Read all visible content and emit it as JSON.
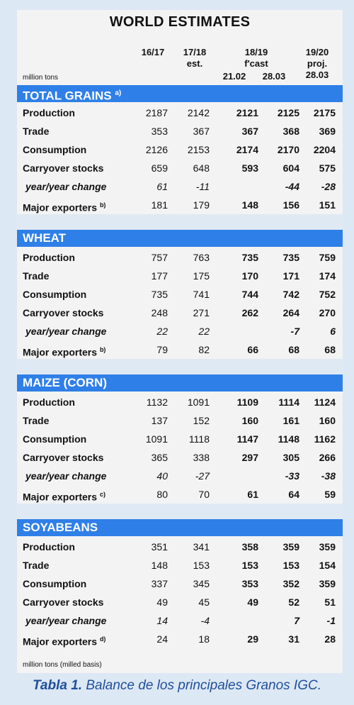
{
  "title": "WORLD ESTIMATES",
  "columns": {
    "c1": {
      "line1": "16/17",
      "line2": ""
    },
    "c2": {
      "line1": "17/18",
      "line2": "est."
    },
    "fcast": {
      "line1": "18/19",
      "line2": "f'cast"
    },
    "c3": {
      "line3": "21.02"
    },
    "c4": {
      "line3": "28.03"
    },
    "c5": {
      "line1": "19/20",
      "line2": "proj.",
      "line3": "28.03"
    }
  },
  "unit_label": "million tons",
  "colors": {
    "section_bar": "#2f7fe8",
    "section_bar_light": "#a9cff4"
  },
  "sections": [
    {
      "name": "TOTAL GRAINS",
      "note": "a)",
      "rows": [
        {
          "label": "Production",
          "note": "",
          "italic": false,
          "values": [
            "2187",
            "2142",
            "2121",
            "2125",
            "2175"
          ]
        },
        {
          "label": "Trade",
          "note": "",
          "italic": false,
          "values": [
            "353",
            "367",
            "367",
            "368",
            "369"
          ]
        },
        {
          "label": "Consumption",
          "note": "",
          "italic": false,
          "values": [
            "2126",
            "2153",
            "2174",
            "2170",
            "2204"
          ]
        },
        {
          "label": "Carryover stocks",
          "note": "",
          "italic": false,
          "values": [
            "659",
            "648",
            "593",
            "604",
            "575"
          ]
        },
        {
          "label": "year/year change",
          "note": "",
          "italic": true,
          "values": [
            "61",
            "-11",
            "",
            "-44",
            "-28"
          ]
        },
        {
          "label": "Major exporters",
          "note": "b)",
          "italic": false,
          "values": [
            "181",
            "179",
            "148",
            "156",
            "151"
          ]
        }
      ]
    },
    {
      "name": "WHEAT",
      "note": "",
      "rows": [
        {
          "label": "Production",
          "note": "",
          "italic": false,
          "values": [
            "757",
            "763",
            "735",
            "735",
            "759"
          ]
        },
        {
          "label": "Trade",
          "note": "",
          "italic": false,
          "values": [
            "177",
            "175",
            "170",
            "171",
            "174"
          ]
        },
        {
          "label": "Consumption",
          "note": "",
          "italic": false,
          "values": [
            "735",
            "741",
            "744",
            "742",
            "752"
          ]
        },
        {
          "label": "Carryover stocks",
          "note": "",
          "italic": false,
          "values": [
            "248",
            "271",
            "262",
            "264",
            "270"
          ]
        },
        {
          "label": "year/year change",
          "note": "",
          "italic": true,
          "values": [
            "22",
            "22",
            "",
            "-7",
            "6"
          ]
        },
        {
          "label": "Major exporters",
          "note": "b)",
          "italic": false,
          "values": [
            "79",
            "82",
            "66",
            "68",
            "68"
          ]
        }
      ]
    },
    {
      "name": "MAIZE (CORN)",
      "note": "",
      "rows": [
        {
          "label": "Production",
          "note": "",
          "italic": false,
          "values": [
            "1132",
            "1091",
            "1109",
            "1114",
            "1124"
          ]
        },
        {
          "label": "Trade",
          "note": "",
          "italic": false,
          "values": [
            "137",
            "152",
            "160",
            "161",
            "160"
          ]
        },
        {
          "label": "Consumption",
          "note": "",
          "italic": false,
          "values": [
            "1091",
            "1118",
            "1147",
            "1148",
            "1162"
          ]
        },
        {
          "label": "Carryover stocks",
          "note": "",
          "italic": false,
          "values": [
            "365",
            "338",
            "297",
            "305",
            "266"
          ]
        },
        {
          "label": "year/year change",
          "note": "",
          "italic": true,
          "values": [
            "40",
            "-27",
            "",
            "-33",
            "-38"
          ]
        },
        {
          "label": "Major exporters",
          "note": "c)",
          "italic": false,
          "values": [
            "80",
            "70",
            "61",
            "64",
            "59"
          ]
        }
      ]
    },
    {
      "name": "SOYABEANS",
      "note": "",
      "rows": [
        {
          "label": "Production",
          "note": "",
          "italic": false,
          "values": [
            "351",
            "341",
            "358",
            "359",
            "359"
          ]
        },
        {
          "label": "Trade",
          "note": "",
          "italic": false,
          "values": [
            "148",
            "153",
            "153",
            "153",
            "154"
          ]
        },
        {
          "label": "Consumption",
          "note": "",
          "italic": false,
          "values": [
            "337",
            "345",
            "353",
            "352",
            "359"
          ]
        },
        {
          "label": "Carryover stocks",
          "note": "",
          "italic": false,
          "values": [
            "49",
            "45",
            "49",
            "52",
            "51"
          ]
        },
        {
          "label": "year/year change",
          "note": "",
          "italic": true,
          "values": [
            "14",
            "-4",
            "",
            "7",
            "-1"
          ]
        },
        {
          "label": "Major exporters",
          "note": "d)",
          "italic": false,
          "values": [
            "24",
            "18",
            "29",
            "31",
            "28"
          ]
        }
      ]
    }
  ],
  "footnote": "million tons (milled basis)",
  "caption": {
    "prefix": "Tabla 1.",
    "text": " Balance de los principales Granos IGC."
  }
}
